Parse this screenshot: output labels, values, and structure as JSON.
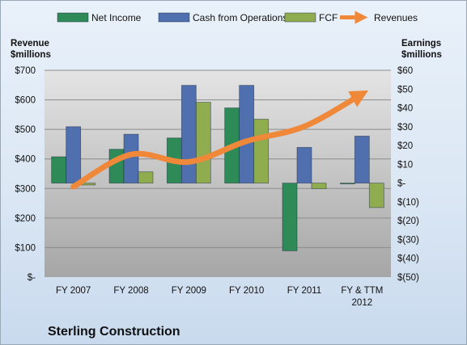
{
  "chart_data": {
    "type": "bar",
    "title": "Sterling Construction",
    "categories": [
      "FY 2007",
      "FY 2008",
      "FY 2009",
      "FY 2010",
      "FY 2011",
      "FY & TTM 2012"
    ],
    "series": [
      {
        "name": "Net Income",
        "axis": "right",
        "type": "bar",
        "color": "#2e8b57",
        "values": [
          14,
          18,
          24,
          40,
          -36,
          0
        ]
      },
      {
        "name": "Cash from Operations",
        "axis": "right",
        "type": "bar",
        "color": "#4f6fae",
        "values": [
          30,
          26,
          52,
          52,
          19,
          25
        ]
      },
      {
        "name": "FCF",
        "axis": "right",
        "type": "bar",
        "color": "#8fac4f",
        "values": [
          -1,
          6,
          43,
          34,
          -3,
          -13
        ]
      },
      {
        "name": "Revenues",
        "axis": "left",
        "type": "line",
        "color": "#f0883a",
        "values": [
          306,
          415,
          390,
          460,
          510,
          620
        ]
      }
    ],
    "y_left": {
      "label": [
        "Revenue",
        "$millions"
      ],
      "range": [
        0,
        700
      ],
      "ticks": [
        700,
        600,
        500,
        400,
        300,
        200,
        100,
        0
      ],
      "tick_labels": [
        "$700",
        "$600",
        "$500",
        "$400",
        "$300",
        "$200",
        "$100",
        "$-"
      ]
    },
    "y_right": {
      "label": [
        "Earnings",
        "$millions"
      ],
      "range": [
        -50,
        60
      ],
      "ticks": [
        60,
        50,
        40,
        30,
        20,
        10,
        0,
        -10,
        -20,
        -30,
        -40,
        -50
      ],
      "tick_labels": [
        "$60",
        "$50",
        "$40",
        "$30",
        "$20",
        "$10",
        "$-",
        "$(10)",
        "$(20)",
        "$(30)",
        "$(40)",
        "$(50)"
      ]
    },
    "legend_position": "top",
    "grid": true
  }
}
